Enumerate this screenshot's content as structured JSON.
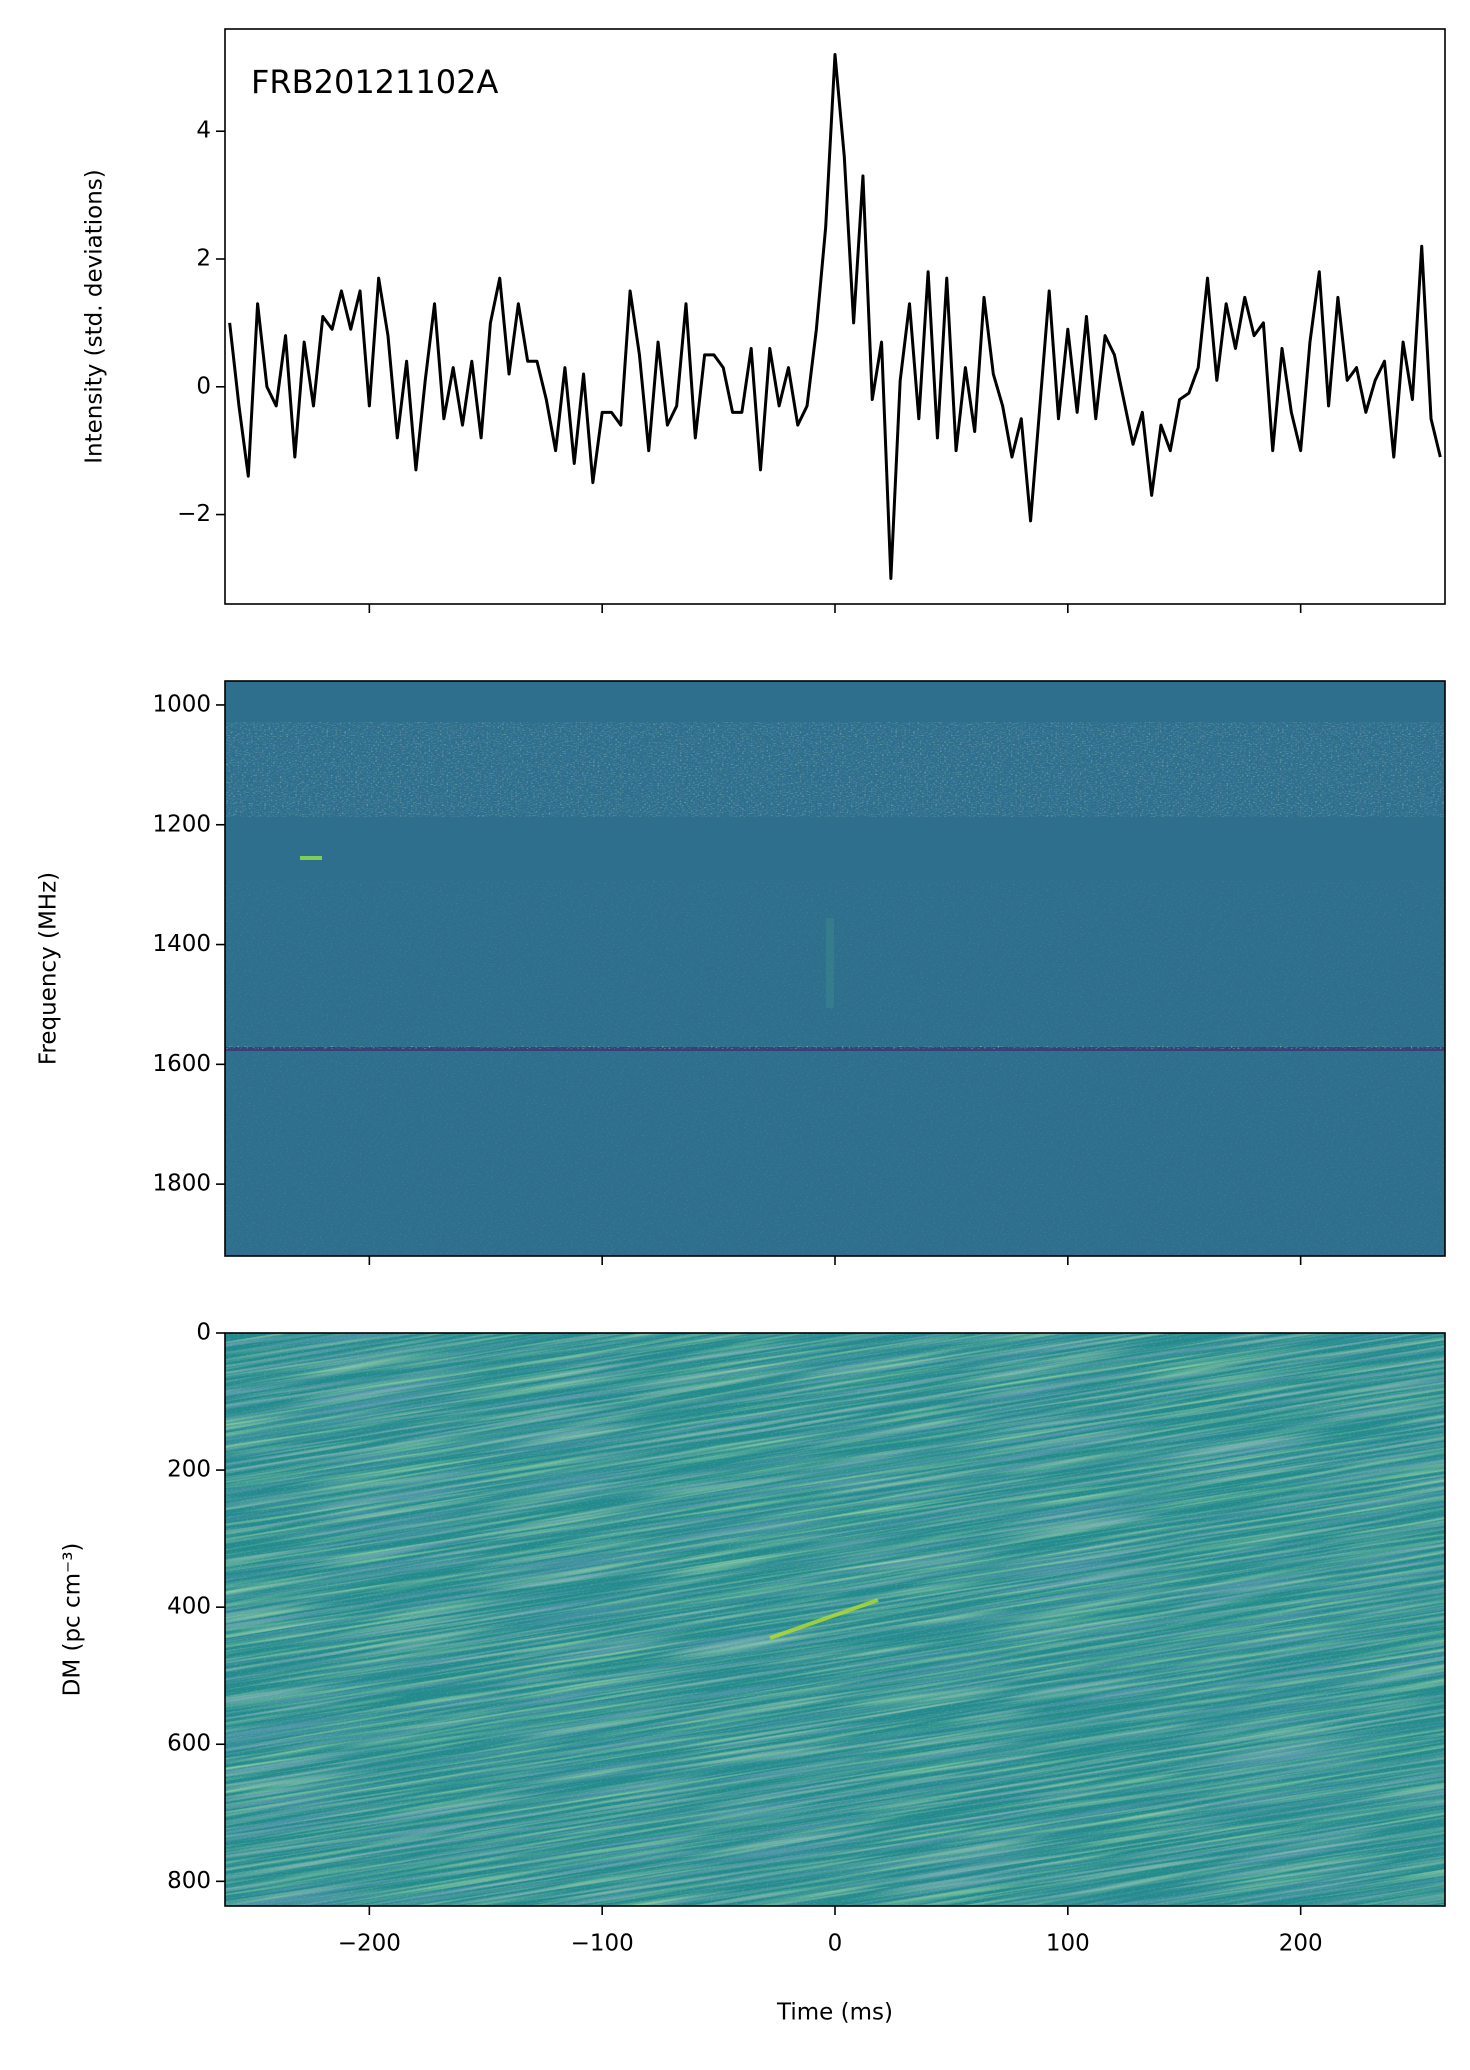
{
  "chart_data": [
    {
      "type": "line",
      "annotation": "FRB20121102A",
      "ylabel": "Intensity (std. deviations)",
      "color": "#000000",
      "x": [
        -260,
        -256,
        -252,
        -248,
        -244,
        -240,
        -236,
        -232,
        -228,
        -224,
        -220,
        -216,
        -212,
        -208,
        -204,
        -200,
        -196,
        -192,
        -188,
        -184,
        -180,
        -176,
        -172,
        -168,
        -164,
        -160,
        -156,
        -152,
        -148,
        -144,
        -140,
        -136,
        -132,
        -128,
        -124,
        -120,
        -116,
        -112,
        -108,
        -104,
        -100,
        -96,
        -92,
        -88,
        -84,
        -80,
        -76,
        -72,
        -68,
        -64,
        -60,
        -56,
        -52,
        -48,
        -44,
        -40,
        -36,
        -32,
        -28,
        -24,
        -20,
        -16,
        -12,
        -8,
        -4,
        0,
        4,
        8,
        12,
        16,
        20,
        24,
        28,
        32,
        36,
        40,
        44,
        48,
        52,
        56,
        60,
        64,
        68,
        72,
        76,
        80,
        84,
        88,
        92,
        96,
        100,
        104,
        108,
        112,
        116,
        120,
        124,
        128,
        132,
        136,
        140,
        144,
        148,
        152,
        156,
        160,
        164,
        168,
        172,
        176,
        180,
        184,
        188,
        192,
        196,
        200,
        204,
        208,
        212,
        216,
        220,
        224,
        228,
        232,
        236,
        240,
        244,
        248,
        252,
        256,
        260
      ],
      "values": [
        1.0,
        -0.3,
        -1.4,
        1.3,
        0.0,
        -0.3,
        0.8,
        -1.1,
        0.7,
        -0.3,
        1.1,
        0.9,
        1.5,
        0.9,
        1.5,
        -0.3,
        1.7,
        0.8,
        -0.8,
        0.4,
        -1.3,
        0.1,
        1.3,
        -0.5,
        0.3,
        -0.6,
        0.4,
        -0.8,
        1.0,
        1.7,
        0.2,
        1.3,
        0.4,
        0.4,
        -0.2,
        -1.0,
        0.3,
        -1.2,
        0.2,
        -1.5,
        -0.4,
        -0.4,
        -0.6,
        1.5,
        0.5,
        -1.0,
        0.7,
        -0.6,
        -0.3,
        1.3,
        -0.8,
        0.5,
        0.5,
        0.3,
        -0.4,
        -0.4,
        0.6,
        -1.3,
        0.6,
        -0.3,
        0.3,
        -0.6,
        -0.3,
        0.9,
        2.5,
        5.2,
        3.6,
        1.0,
        3.3,
        -0.2,
        0.7,
        -3.0,
        0.1,
        1.3,
        -0.5,
        1.8,
        -0.8,
        1.7,
        -1.0,
        0.3,
        -0.7,
        1.4,
        0.2,
        -0.3,
        -1.1,
        -0.5,
        -2.1,
        -0.3,
        1.5,
        -0.5,
        0.9,
        -0.4,
        1.1,
        -0.5,
        0.8,
        0.5,
        -0.2,
        -0.9,
        -0.4,
        -1.7,
        -0.6,
        -1.0,
        -0.2,
        -0.1,
        0.3,
        1.7,
        0.1,
        1.3,
        0.6,
        1.4,
        0.8,
        1.0,
        -1.0,
        0.6,
        -0.4,
        -1.0,
        0.7,
        1.8,
        -0.3,
        1.4,
        0.1,
        0.3,
        -0.4,
        0.1,
        0.4,
        -1.1,
        0.7,
        -0.2,
        2.2,
        -0.5,
        -1.1
      ],
      "xlim": [
        -262,
        262
      ],
      "xticks": [
        -200,
        -100,
        0,
        100,
        200
      ],
      "xtick_labels": false,
      "ylim": [
        -3.4,
        5.6
      ],
      "yticks": [
        {
          "value": -2,
          "label": "−2"
        },
        0,
        2,
        4
      ]
    },
    {
      "type": "image",
      "ylabel": "Frequency (MHz)",
      "color": "#2e6f8e",
      "xlim": [
        -262,
        262
      ],
      "xticks": [
        -200,
        -100,
        0,
        100,
        200
      ],
      "xtick_labels": false,
      "ylim": [
        1920,
        960
      ],
      "yticks": [
        1000,
        1200,
        1400,
        1600,
        1800
      ]
    },
    {
      "type": "image",
      "ylabel": "DM (pc cm⁻³)",
      "xlabel": "Time (ms)",
      "color": "#238a8d",
      "xlim": [
        -262,
        262
      ],
      "xticks": [
        {
          "value": -200,
          "label": "−200"
        },
        {
          "value": -100,
          "label": "−100"
        },
        0,
        100,
        200
      ],
      "ylim": [
        836,
        0
      ],
      "yticks": [
        0,
        200,
        400,
        600,
        800
      ]
    }
  ]
}
